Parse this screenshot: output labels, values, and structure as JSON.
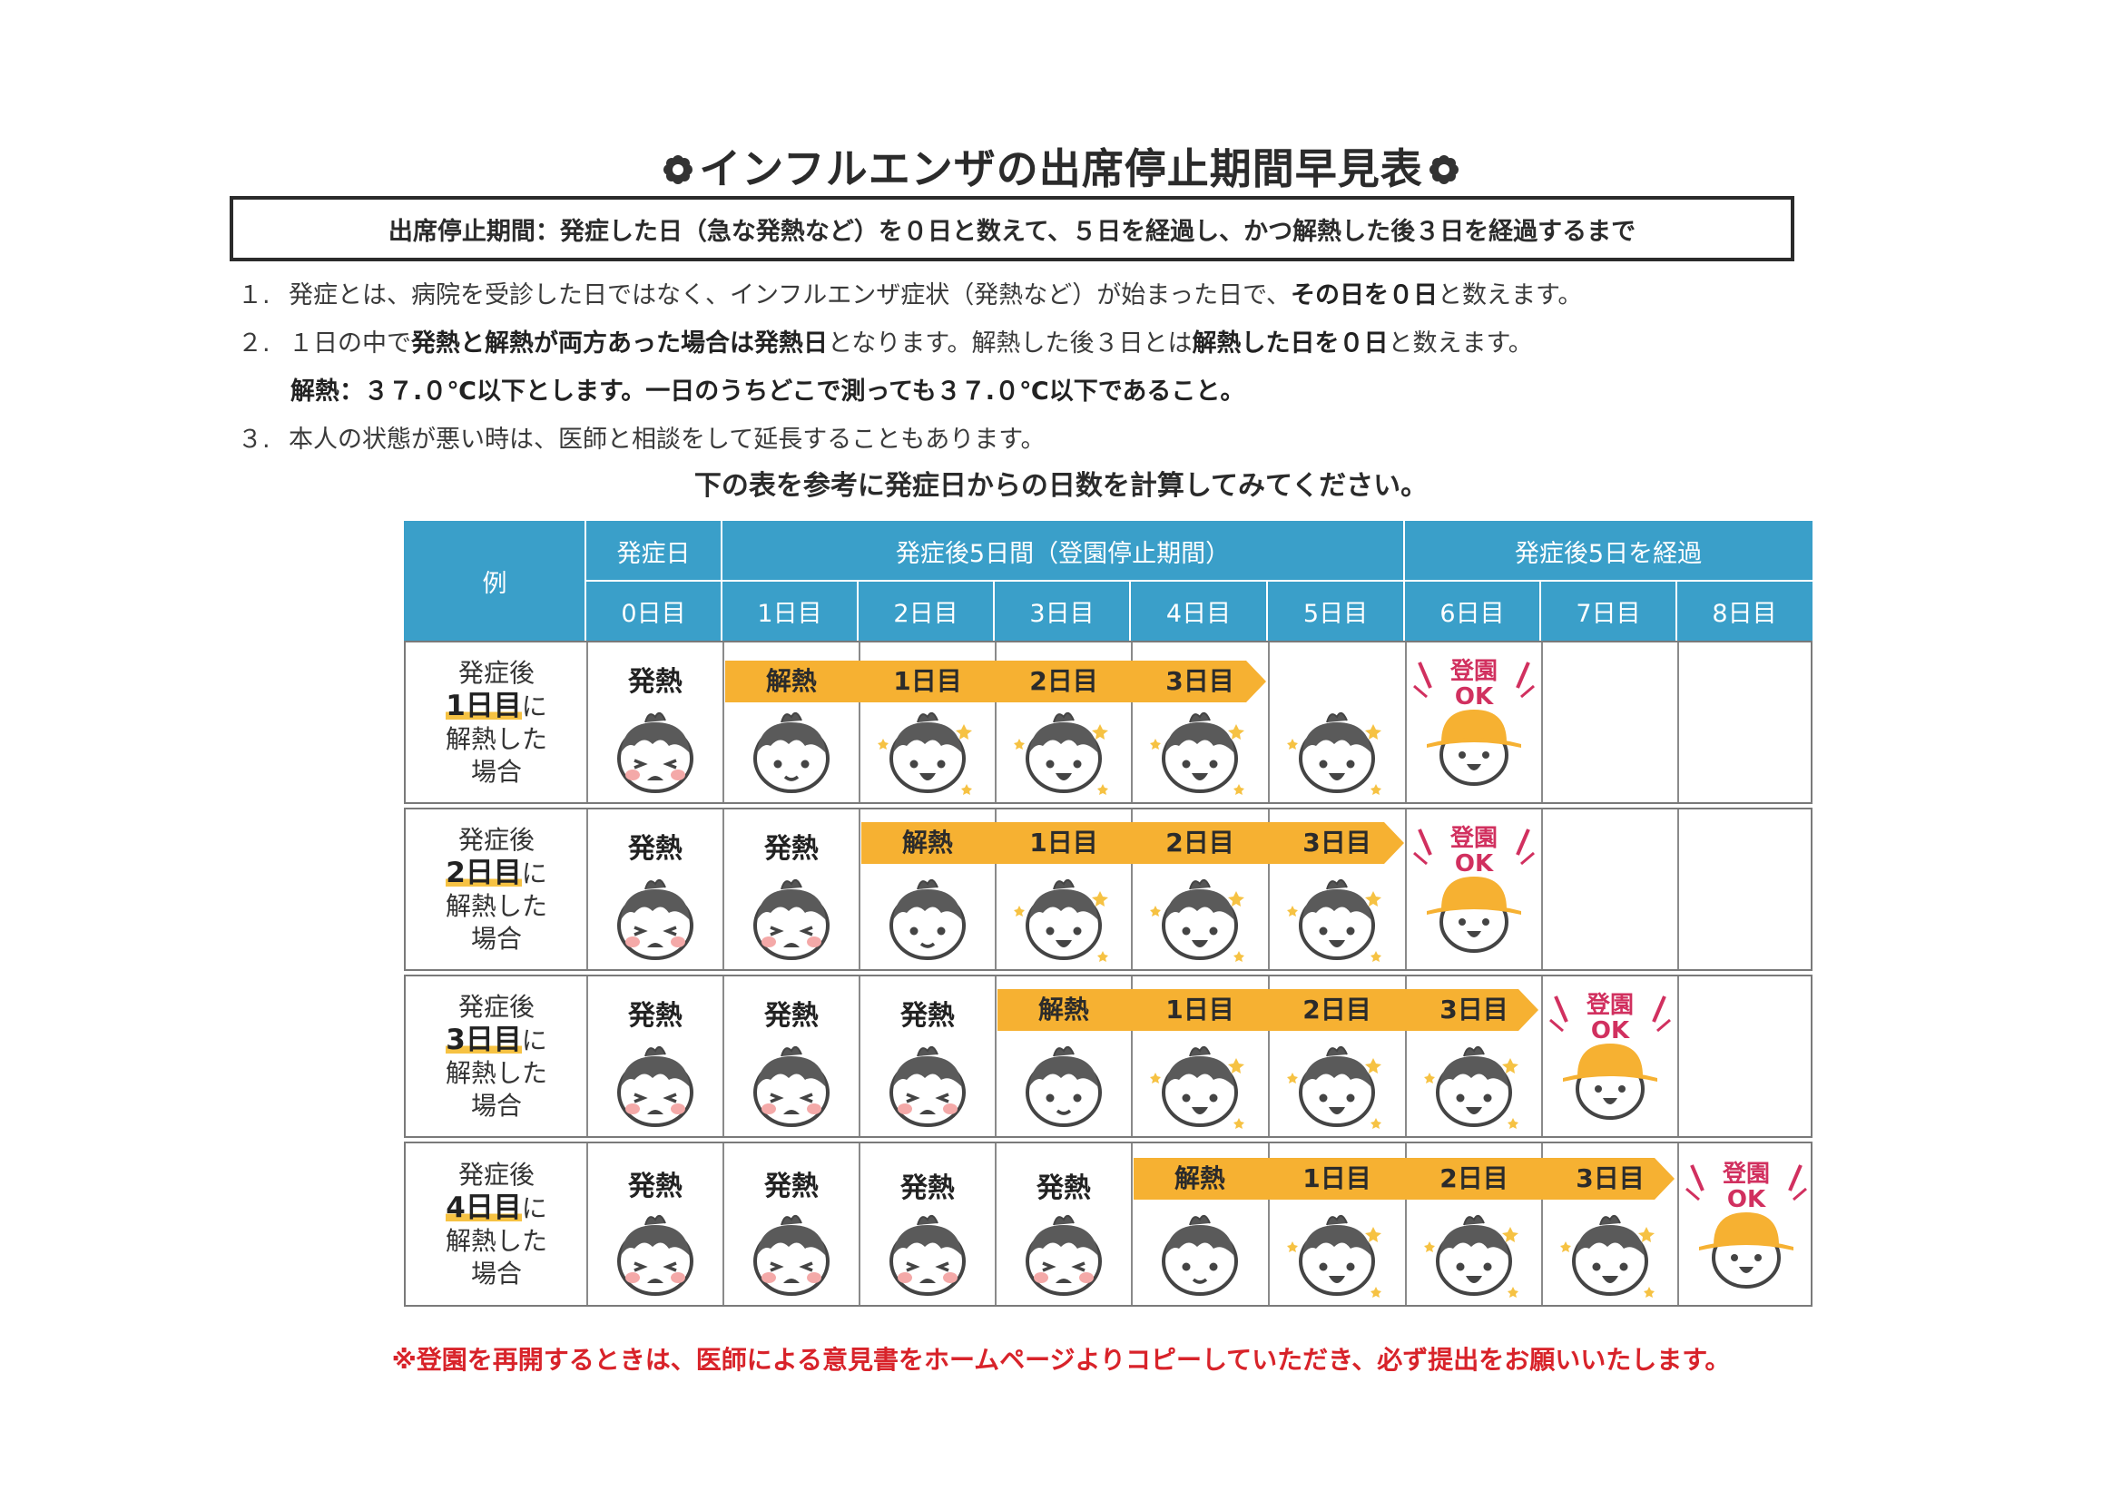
{
  "title": "インフルエンザの出席停止期間早見表",
  "rule": "出席停止期間：発症した日（急な発熱など）を０日と数えて、５日を経過し、かつ解熱した後３日を経過するまで",
  "notes": {
    "n1_num": "１.",
    "n1_a": "発症とは、病院を受診した日ではなく、インフルエンザ症状（発熱など）が始まった日で、",
    "n1_b": "その日を０日",
    "n1_c": "と数えます。",
    "n2_num": "２.",
    "n2_a": "１日の中で",
    "n2_b": "発熱と解熱が両方あった場合は発熱日",
    "n2_c": "となります。解熱した後３日とは",
    "n2_d": "解熱した日を０日",
    "n2_e": "と数えます。",
    "n2_sub": "解熱：３７.０℃以下とします。一日のうちどこで測っても３７.０℃以下であること。",
    "n3_num": "３.",
    "n3_a": "本人の状態が悪い時は、医師と相談をして延長することもあります。"
  },
  "table_caption": "下の表を参考に発症日からの日数を計算してみてください。",
  "header": {
    "example": "例",
    "onset": "発症日",
    "period": "発症後5日間（登園停止期間）",
    "after": "発症後5日を経過",
    "days": [
      "0日目",
      "1日目",
      "2日目",
      "3日目",
      "4日目",
      "5日目",
      "6日目",
      "7日目",
      "8日目"
    ]
  },
  "rows": [
    {
      "line1": "発症後",
      "big": "1日目",
      "ni": "に",
      "line3": "解熱した",
      "line4": "場合"
    },
    {
      "line1": "発症後",
      "big": "2日目",
      "ni": "に",
      "line3": "解熱した",
      "line4": "場合"
    },
    {
      "line1": "発症後",
      "big": "3日目",
      "ni": "に",
      "line3": "解熱した",
      "line4": "場合"
    },
    {
      "line1": "発症後",
      "big": "4日目",
      "ni": "に",
      "line3": "解熱した",
      "line4": "場合"
    }
  ],
  "labels": {
    "fever": "発熱",
    "recovered": "解熱",
    "d1": "1日目",
    "d2": "2日目",
    "d3": "3日目",
    "ok_line1": "登園",
    "ok_line2": "OK"
  },
  "footnote": "※登園を再開するときは、医師による意見書をホームページよりコピーしていただき、必ず提出をお願いいたします。",
  "colors": {
    "header_blue": "#3a9fc9",
    "arrow_orange": "#f6b132",
    "highlight_yellow": "#f6c243",
    "ok_magenta": "#d1305f",
    "footnote_red": "#d8232a"
  }
}
